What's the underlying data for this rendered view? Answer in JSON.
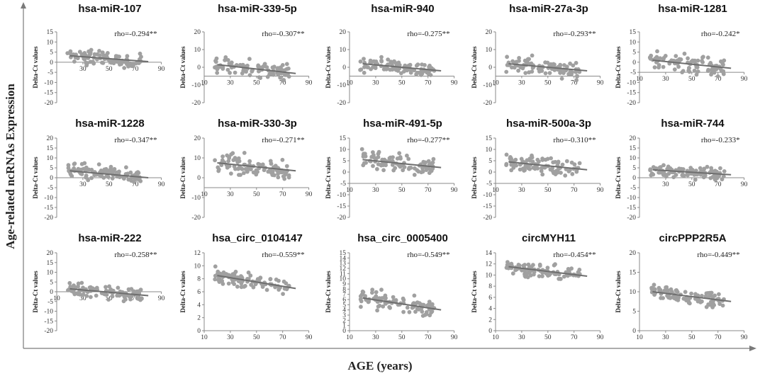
{
  "figure": {
    "global_ylabel": "Age-related ncRNAs Expression",
    "global_xlabel": "AGE (years)",
    "colors": {
      "points": "#a0a0a0",
      "trend": "#6e6e6e",
      "axis": "#8a8a8a",
      "frame": "#7a7a7a"
    }
  },
  "chart_data": [
    {
      "type": "scatter",
      "title": "hsa-miR-107",
      "rho": "rho=-0.294**",
      "ylabel": "Delta-Ct values",
      "ylim": [
        -20,
        15
      ],
      "yticks": [
        15,
        10,
        5,
        0,
        -5,
        -10,
        -15,
        -20
      ],
      "xlim": [
        10,
        90
      ],
      "xticks": [
        30,
        50,
        70,
        90
      ],
      "x_axis_at": 0,
      "trend": [
        [
          20,
          3.2
        ],
        [
          80,
          0.3
        ]
      ],
      "cloud": {
        "x": [
          18,
          75
        ],
        "center_at_20": 3.0,
        "slope": -0.05,
        "spread": 2.3
      }
    },
    {
      "type": "scatter",
      "title": "hsa-miR-339-5p",
      "rho": "rho=-0.307**",
      "ylabel": "Delta-Ct values",
      "ylim": [
        -20,
        20
      ],
      "yticks": [
        20,
        10,
        0,
        -10,
        -20
      ],
      "xlim": [
        10,
        90
      ],
      "xticks": [
        10,
        30,
        50,
        70,
        90
      ],
      "x_axis_at": -5,
      "trend": [
        [
          20,
          1.5
        ],
        [
          80,
          -3.5
        ]
      ],
      "cloud": {
        "x": [
          18,
          75
        ],
        "center_at_20": 1.5,
        "slope": -0.08,
        "spread": 3.0
      }
    },
    {
      "type": "scatter",
      "title": "hsa-miR-940",
      "rho": "rho=-0.275**",
      "ylabel": "Delta-Ct values",
      "ylim": [
        -20,
        20
      ],
      "yticks": [
        20,
        10,
        0,
        -10,
        -20
      ],
      "xlim": [
        10,
        90
      ],
      "xticks": [
        10,
        30,
        50,
        70,
        90
      ],
      "x_axis_at": -5,
      "trend": [
        [
          20,
          2.0
        ],
        [
          80,
          -2.0
        ]
      ],
      "cloud": {
        "x": [
          18,
          75
        ],
        "center_at_20": 2.0,
        "slope": -0.07,
        "spread": 3.0
      }
    },
    {
      "type": "scatter",
      "title": "hsa-miR-27a-3p",
      "rho": "rho=-0.293**",
      "ylabel": "Delta-Ct values",
      "ylim": [
        -20,
        20
      ],
      "yticks": [
        20,
        10,
        0,
        -10,
        -20
      ],
      "xlim": [
        10,
        90
      ],
      "xticks": [
        10,
        30,
        50,
        70,
        90
      ],
      "x_axis_at": -5,
      "trend": [
        [
          20,
          2.0
        ],
        [
          80,
          -2.0
        ]
      ],
      "cloud": {
        "x": [
          18,
          75
        ],
        "center_at_20": 2.0,
        "slope": -0.07,
        "spread": 3.0
      }
    },
    {
      "type": "scatter",
      "title": "hsa-miR-1281",
      "rho": "rho=-0.242*",
      "ylabel": "Delta-Ct values",
      "ylim": [
        -20,
        15
      ],
      "yticks": [
        15,
        10,
        5,
        0,
        -5,
        -10,
        -15,
        -20
      ],
      "xlim": [
        10,
        90
      ],
      "xticks": [
        10,
        30,
        50,
        70,
        90
      ],
      "x_axis_at": -5,
      "trend": [
        [
          20,
          1.0
        ],
        [
          80,
          -3.0
        ]
      ],
      "cloud": {
        "x": [
          18,
          75
        ],
        "center_at_20": 1.0,
        "slope": -0.07,
        "spread": 3.0
      }
    },
    {
      "type": "scatter",
      "title": "hsa-miR-1228",
      "rho": "rho=-0.347**",
      "ylabel": "Delta-Ct values",
      "ylim": [
        -20,
        20
      ],
      "yticks": [
        20,
        15,
        10,
        5,
        0,
        -5,
        -10,
        -15,
        -20
      ],
      "xlim": [
        10,
        90
      ],
      "xticks": [
        30,
        50,
        70,
        90
      ],
      "x_axis_at": 0,
      "trend": [
        [
          20,
          3.5
        ],
        [
          80,
          0.0
        ]
      ],
      "cloud": {
        "x": [
          18,
          75
        ],
        "center_at_20": 3.5,
        "slope": -0.06,
        "spread": 2.5
      }
    },
    {
      "type": "scatter",
      "title": "hsa-miR-330-3p",
      "rho": "rho=-0.271**",
      "ylabel": "Delta-Ct values",
      "ylim": [
        -20,
        20
      ],
      "yticks": [
        20,
        10,
        0,
        -10,
        -20
      ],
      "xlim": [
        10,
        90
      ],
      "xticks": [
        10,
        30,
        50,
        70,
        90
      ],
      "x_axis_at": -5,
      "trend": [
        [
          20,
          7.5
        ],
        [
          80,
          3.5
        ]
      ],
      "cloud": {
        "x": [
          18,
          75
        ],
        "center_at_20": 7.5,
        "slope": -0.07,
        "spread": 3.5
      }
    },
    {
      "type": "scatter",
      "title": "hsa-miR-491-5p",
      "rho": "rho=-0.277**",
      "ylabel": "Delta-Ct values",
      "ylim": [
        -20,
        15
      ],
      "yticks": [
        15,
        10,
        5,
        0,
        -5,
        -10,
        -15,
        -20
      ],
      "xlim": [
        10,
        90
      ],
      "xticks": [
        10,
        30,
        50,
        70,
        90
      ],
      "x_axis_at": -5,
      "trend": [
        [
          20,
          5.5
        ],
        [
          80,
          2.0
        ]
      ],
      "cloud": {
        "x": [
          18,
          75
        ],
        "center_at_20": 5.5,
        "slope": -0.06,
        "spread": 2.5
      }
    },
    {
      "type": "scatter",
      "title": "hsa-miR-500a-3p",
      "rho": "rho=-0.310**",
      "ylabel": "Delta-Ct values",
      "ylim": [
        -20,
        15
      ],
      "yticks": [
        15,
        10,
        5,
        0,
        -5,
        -10,
        -15,
        -20
      ],
      "xlim": [
        10,
        90
      ],
      "xticks": [
        10,
        30,
        50,
        70,
        90
      ],
      "x_axis_at": -5,
      "trend": [
        [
          20,
          4.5
        ],
        [
          80,
          1.0
        ]
      ],
      "cloud": {
        "x": [
          18,
          75
        ],
        "center_at_20": 4.5,
        "slope": -0.06,
        "spread": 2.3
      }
    },
    {
      "type": "scatter",
      "title": "hsa-miR-744",
      "rho": "rho=-0.233*",
      "ylabel": "Delta-Ct values",
      "ylim": [
        -20,
        20
      ],
      "yticks": [
        20,
        15,
        10,
        5,
        0,
        -5,
        -10,
        -15,
        -20
      ],
      "xlim": [
        10,
        90
      ],
      "xticks": [
        30,
        50,
        70,
        90
      ],
      "x_axis_at": 0,
      "trend": [
        [
          20,
          4.0
        ],
        [
          80,
          1.5
        ]
      ],
      "cloud": {
        "x": [
          18,
          75
        ],
        "center_at_20": 4.0,
        "slope": -0.04,
        "spread": 2.5
      }
    },
    {
      "type": "scatter",
      "title": "hsa-miR-222",
      "rho": "rho=-0.258**",
      "ylabel": "Delta-Ct values",
      "ylim": [
        -20,
        20
      ],
      "yticks": [
        20,
        15,
        10,
        5,
        0,
        -5,
        -10,
        -15,
        -20
      ],
      "xlim": [
        10,
        90
      ],
      "xticks": [
        10,
        30,
        50,
        70,
        90
      ],
      "x_axis_at": 0,
      "trend": [
        [
          20,
          1.5
        ],
        [
          80,
          -2.0
        ]
      ],
      "cloud": {
        "x": [
          18,
          75
        ],
        "center_at_20": 1.5,
        "slope": -0.06,
        "spread": 2.5
      }
    },
    {
      "type": "scatter",
      "title": "hsa_circ_0104147",
      "rho": "rho=-0.559**",
      "ylabel": "Delta-Ct values",
      "ylim": [
        0,
        12
      ],
      "yticks": [
        12,
        10,
        8,
        6,
        4,
        2,
        0
      ],
      "xlim": [
        10,
        90
      ],
      "xticks": [
        10,
        30,
        50,
        70,
        90
      ],
      "x_axis_at": 0,
      "trend": [
        [
          20,
          8.5
        ],
        [
          80,
          6.5
        ]
      ],
      "cloud": {
        "x": [
          18,
          75
        ],
        "center_at_20": 8.5,
        "slope": -0.033,
        "spread": 0.8
      }
    },
    {
      "type": "scatter",
      "title": "hsa_circ_0005400",
      "rho": "rho=-0.549**",
      "ylabel": "Delta-Ct values",
      "ylim": [
        0,
        15
      ],
      "yticks": [
        15,
        14,
        13,
        12,
        11,
        10,
        9,
        8,
        7,
        6,
        5,
        4,
        3,
        2,
        1,
        0
      ],
      "xlim": [
        10,
        90
      ],
      "xticks": [
        10,
        30,
        50,
        70,
        90
      ],
      "x_axis_at": 0,
      "trend": [
        [
          20,
          6.3
        ],
        [
          80,
          4.0
        ]
      ],
      "cloud": {
        "x": [
          18,
          75
        ],
        "center_at_20": 6.3,
        "slope": -0.04,
        "spread": 1.0
      }
    },
    {
      "type": "scatter",
      "title": "circMYH11",
      "rho": "rho=-0.454**",
      "ylabel": "Delta-Ct values",
      "ylim": [
        0,
        14
      ],
      "yticks": [
        14,
        12,
        10,
        8,
        6,
        4,
        2,
        0
      ],
      "xlim": [
        10,
        90
      ],
      "xticks": [
        10,
        30,
        50,
        70,
        90
      ],
      "x_axis_at": 0,
      "trend": [
        [
          20,
          11.5
        ],
        [
          80,
          9.8
        ]
      ],
      "cloud": {
        "x": [
          18,
          75
        ],
        "center_at_20": 11.5,
        "slope": -0.028,
        "spread": 0.8
      }
    },
    {
      "type": "scatter",
      "title": "circPPP2R5A",
      "rho": "rho=-0.449**",
      "ylabel": "Delta-Ct values",
      "ylim": [
        0,
        20
      ],
      "yticks": [
        20,
        15,
        10,
        5,
        0
      ],
      "xlim": [
        10,
        90
      ],
      "xticks": [
        10,
        30,
        50,
        70,
        90
      ],
      "x_axis_at": 0,
      "trend": [
        [
          20,
          10.0
        ],
        [
          80,
          7.5
        ]
      ],
      "cloud": {
        "x": [
          18,
          75
        ],
        "center_at_20": 10.0,
        "slope": -0.04,
        "spread": 1.3
      }
    }
  ]
}
